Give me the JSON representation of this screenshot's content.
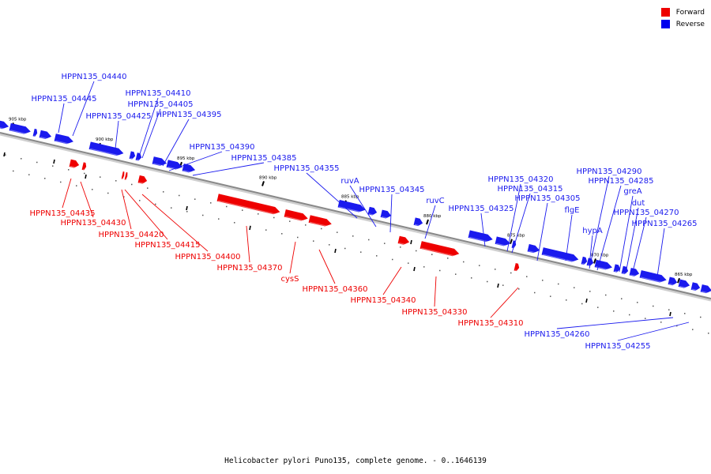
{
  "caption": "Helicobacter pylori Puno135, complete genome. - 0..1646139",
  "legend": [
    {
      "label": "Forward",
      "color": "#ee0000"
    },
    {
      "label": "Reverse",
      "color": "#0000ee"
    }
  ],
  "colors": {
    "forward": "#ee0000",
    "reverse": "#1a1aee",
    "axis": "#888888"
  },
  "ticks": [
    "905 kbp",
    "900 kbp",
    "895 kbp",
    "890 kbp",
    "885 kbp",
    "880 kbp",
    "875 kbp",
    "870 kbp",
    "865 kbp"
  ],
  "reverse_labels": [
    "HPPN135_04440",
    "HPPN135_04445",
    "HPPN135_04410",
    "HPPN135_04405",
    "HPPN135_04425",
    "HPPN135_04395",
    "HPPN135_04390",
    "HPPN135_04385",
    "HPPN135_04355",
    "ruvA",
    "HPPN135_04345",
    "ruvC",
    "HPPN135_04325",
    "HPPN135_04320",
    "HPPN135_04315",
    "HPPN135_04305",
    "flgE",
    "HPPN135_04290",
    "HPPN135_04285",
    "greA",
    "dut",
    "HPPN135_04270",
    "hypA",
    "HPPN135_04265",
    "HPPN135_04260",
    "HPPN135_04255"
  ],
  "forward_labels": [
    "HPPN135_04435",
    "HPPN135_04430",
    "HPPN135_04420",
    "HPPN135_04415",
    "HPPN135_04400",
    "HPPN135_04370",
    "cysS",
    "HPPN135_04360",
    "HPPN135_04340",
    "HPPN135_04330",
    "HPPN135_04310"
  ]
}
